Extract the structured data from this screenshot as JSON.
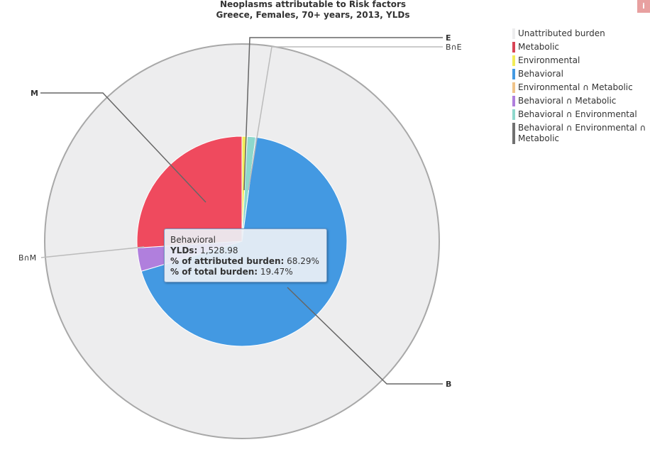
{
  "chart_data": {
    "type": "pie",
    "title": "Neoplasms attributable to Risk factors",
    "subtitle": "Greece, Females, 70+ years, 2013, YLDs",
    "outer_ring": [
      {
        "name": "Unattributed burden",
        "value": 71.48,
        "color": "#ededee"
      }
    ],
    "inner_pie": [
      {
        "name": "Environmental",
        "value": 0.8,
        "color": "#f2ec58",
        "label": "E"
      },
      {
        "name": "Behavioral ∩ Environmental",
        "value": 1.3,
        "color": "#8ed8cc",
        "label": "B∩E"
      },
      {
        "name": "Behavioral",
        "value": 68.29,
        "color": "#4399e2",
        "label": "B"
      },
      {
        "name": "Behavioral ∩ Metabolic",
        "value": 3.6,
        "color": "#b07fdd",
        "label": "B∩M"
      },
      {
        "name": "Metabolic",
        "value": 26.01,
        "color": "#ef4a5e",
        "label": "M"
      }
    ],
    "legend": [
      {
        "text": "Unattributed burden",
        "color": "#ededee"
      },
      {
        "text": "Metabolic",
        "color": "#d84455"
      },
      {
        "text": "Environmental",
        "color": "#f2ec58"
      },
      {
        "text": "Behavioral",
        "color": "#4399e2"
      },
      {
        "text": "Environmental ∩ Metabolic",
        "color": "#f0c48a"
      },
      {
        "text": "Behavioral ∩ Metabolic",
        "color": "#b07fdd"
      },
      {
        "text": "Behavioral ∩ Environmental",
        "color": "#8ed8cc"
      },
      {
        "text": "Behavioral ∩ Environmental ∩ Metabolic",
        "color": "#707070"
      }
    ],
    "legend_position": "right"
  },
  "tooltip": {
    "name": "Behavioral",
    "yld_label": "YLDs:",
    "yld_value": "1,528.98",
    "attr_label": "% of attributed burden:",
    "attr_value": "68.29%",
    "total_label": "% of total burden:",
    "total_value": "19.47%"
  },
  "info_icon": "info-icon",
  "info_glyph": "i"
}
